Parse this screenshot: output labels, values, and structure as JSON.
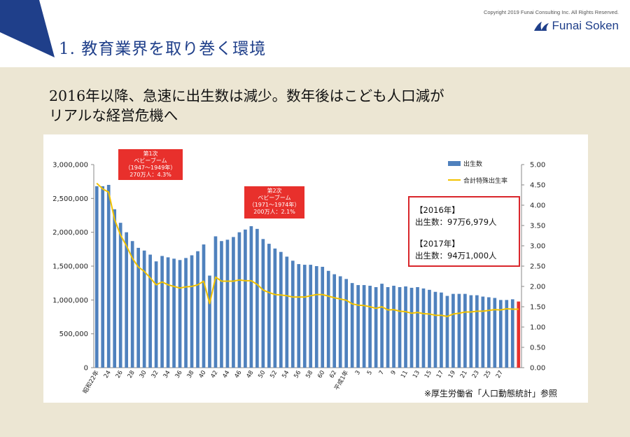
{
  "header": {
    "title": "1. 教育業界を取り巻く環境",
    "copyright": "Copyright 2019  Funai Consulting Inc. All  Rights  Reserved.",
    "logo_text": "Funai Soken"
  },
  "headline": {
    "line1": "2016年以降、急速に出生数は減少。数年後はこども人口減が",
    "line2": "リアルな経営危機へ"
  },
  "info_box": {
    "year1": "【2016年】",
    "value1": "出生数：97万6,979人",
    "year2": "【2017年】",
    "value2": "出生数：94万1,000人"
  },
  "boom1": {
    "title": "第1次",
    "name": "ベビーブーム",
    "period": "（1947～1949年）",
    "detail": "270万人：4.3%"
  },
  "boom2": {
    "title": "第2次",
    "name": "ベビーブーム",
    "period": "（1971～1974年）",
    "detail": "200万人：2.1%"
  },
  "source": "※厚生労働省「人口動態統計」参照",
  "colors": {
    "bar": "#4f81bd",
    "bar_highlight": "#e8302c",
    "line": "#f2c200",
    "title": "#1f3f8a",
    "accent_red": "#d9262b"
  },
  "chart_data": {
    "type": "bar",
    "title": "",
    "legend": [
      "出生数",
      "合計特殊出生率"
    ],
    "legend_position": "top-right",
    "y_left": {
      "min": 0,
      "max": 3000000,
      "ticks": [
        "0",
        "500,000",
        "1,000,000",
        "1,500,000",
        "2,000,000",
        "2,500,000",
        "3,000,000"
      ]
    },
    "y_right": {
      "min": 0,
      "max": 5,
      "ticks": [
        "0.00",
        "0.50",
        "1.00",
        "1.50",
        "2.00",
        "2.50",
        "3.00",
        "3.50",
        "4.00",
        "4.50",
        "5.00"
      ]
    },
    "x_labels": [
      "昭和22年",
      "24",
      "26",
      "28",
      "30",
      "32",
      "34",
      "36",
      "38",
      "40",
      "42",
      "44",
      "46",
      "48",
      "50",
      "52",
      "54",
      "56",
      "58",
      "60",
      "62",
      "平成1年",
      "3",
      "5",
      "7",
      "9",
      "11",
      "13",
      "15",
      "17",
      "19",
      "21",
      "23",
      "25",
      "27"
    ],
    "series": [
      {
        "name": "出生数",
        "kind": "bar",
        "values": [
          2680000,
          2680000,
          2700000,
          2340000,
          2140000,
          2000000,
          1870000,
          1770000,
          1730000,
          1670000,
          1570000,
          1650000,
          1630000,
          1610000,
          1590000,
          1620000,
          1660000,
          1720000,
          1820000,
          1360000,
          1940000,
          1870000,
          1890000,
          1930000,
          2000000,
          2040000,
          2090000,
          2050000,
          1900000,
          1830000,
          1760000,
          1710000,
          1640000,
          1580000,
          1530000,
          1520000,
          1520000,
          1500000,
          1490000,
          1430000,
          1380000,
          1350000,
          1310000,
          1250000,
          1220000,
          1220000,
          1210000,
          1190000,
          1240000,
          1190000,
          1210000,
          1190000,
          1200000,
          1180000,
          1190000,
          1170000,
          1150000,
          1120000,
          1110000,
          1060000,
          1090000,
          1090000,
          1090000,
          1070000,
          1070000,
          1050000,
          1040000,
          1030000,
          1000000,
          1000000,
          1010000,
          977000
        ]
      },
      {
        "name": "合計特殊出生率",
        "kind": "line",
        "values": [
          4.54,
          4.4,
          4.32,
          3.65,
          3.26,
          3.0,
          2.69,
          2.48,
          2.37,
          2.21,
          2.04,
          2.11,
          2.04,
          2.0,
          1.96,
          1.99,
          2.0,
          2.04,
          2.13,
          1.58,
          2.23,
          2.13,
          2.13,
          2.13,
          2.16,
          2.14,
          2.14,
          2.05,
          1.91,
          1.85,
          1.8,
          1.79,
          1.77,
          1.74,
          1.74,
          1.74,
          1.77,
          1.8,
          1.8,
          1.76,
          1.72,
          1.69,
          1.66,
          1.57,
          1.54,
          1.53,
          1.5,
          1.46,
          1.5,
          1.42,
          1.43,
          1.39,
          1.38,
          1.34,
          1.36,
          1.33,
          1.32,
          1.29,
          1.29,
          1.26,
          1.32,
          1.34,
          1.37,
          1.37,
          1.39,
          1.39,
          1.41,
          1.43,
          1.42,
          1.45,
          1.44,
          1.44
        ]
      }
    ]
  }
}
